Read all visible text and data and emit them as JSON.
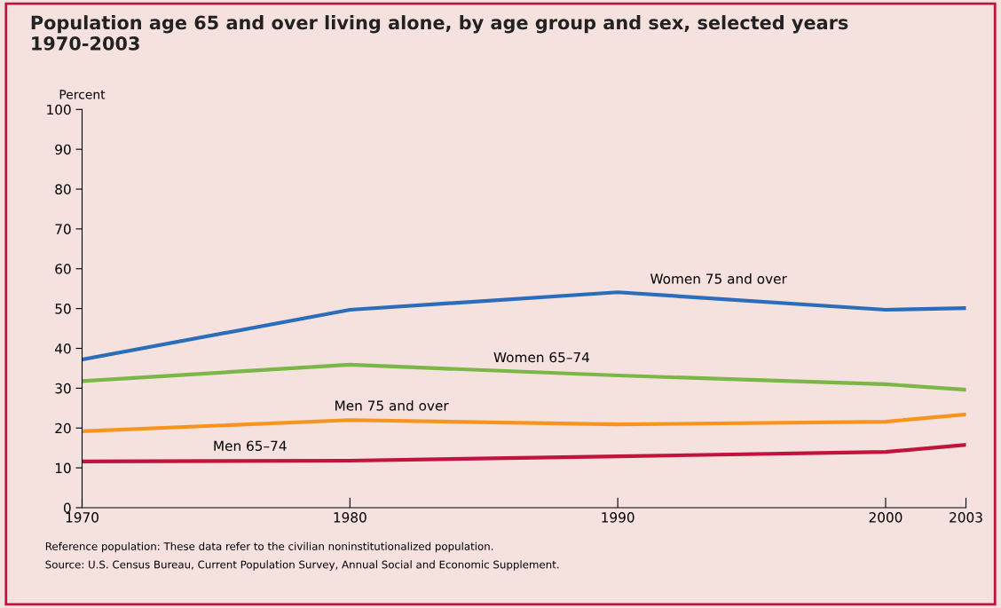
{
  "chart_data": {
    "type": "line",
    "title": "Population age 65 and over living alone, by age group and sex, selected years\n1970-2003",
    "ylabel": "Percent",
    "x": [
      1970,
      1980,
      1990,
      2000,
      2003
    ],
    "series": [
      {
        "name": "Women 75 and over",
        "color": "#2a6ebb",
        "values": [
          37.2,
          49.7,
          54.1,
          49.7,
          50.1
        ]
      },
      {
        "name": "Women 65–74",
        "color": "#7ab648",
        "values": [
          31.8,
          35.9,
          33.2,
          31.0,
          29.6
        ]
      },
      {
        "name": "Men 75 and over",
        "color": "#f7941d",
        "values": [
          19.2,
          22.0,
          20.9,
          21.6,
          23.4
        ]
      },
      {
        "name": "Men 65–74",
        "color": "#c0143c",
        "values": [
          11.6,
          11.8,
          12.9,
          14.0,
          15.8
        ]
      }
    ],
    "xlim": [
      1970,
      2003
    ],
    "xticks": [
      1970,
      1980,
      1990,
      2000,
      2003
    ],
    "ylim": [
      0,
      100
    ],
    "yticks": [
      0,
      10,
      20,
      30,
      40,
      50,
      60,
      70,
      80,
      90,
      100
    ],
    "grid": false,
    "legend": false,
    "marker": "none",
    "line_style": "solid",
    "annotations": [
      "Reference population: These data refer to the civilian noninstitutionalized population.",
      "Source: U.S. Census Bureau, Current Population Survey, Annual Social and Economic Supplement."
    ]
  }
}
